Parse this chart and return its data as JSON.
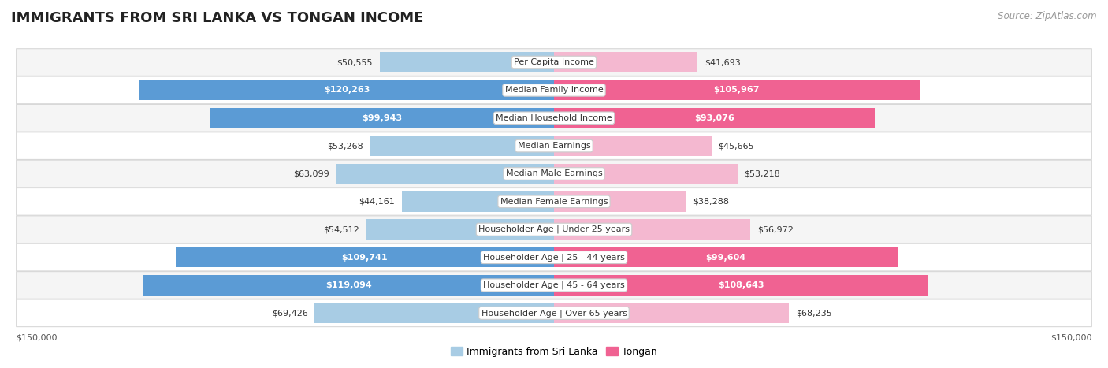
{
  "title": "IMMIGRANTS FROM SRI LANKA VS TONGAN INCOME",
  "source": "Source: ZipAtlas.com",
  "categories": [
    "Per Capita Income",
    "Median Family Income",
    "Median Household Income",
    "Median Earnings",
    "Median Male Earnings",
    "Median Female Earnings",
    "Householder Age | Under 25 years",
    "Householder Age | 25 - 44 years",
    "Householder Age | 45 - 64 years",
    "Householder Age | Over 65 years"
  ],
  "sri_lanka_values": [
    50555,
    120263,
    99943,
    53268,
    63099,
    44161,
    54512,
    109741,
    119094,
    69426
  ],
  "tongan_values": [
    41693,
    105967,
    93076,
    45665,
    53218,
    38288,
    56972,
    99604,
    108643,
    68235
  ],
  "sri_lanka_labels": [
    "$50,555",
    "$120,263",
    "$99,943",
    "$53,268",
    "$63,099",
    "$44,161",
    "$54,512",
    "$109,741",
    "$119,094",
    "$69,426"
  ],
  "tongan_labels": [
    "$41,693",
    "$105,967",
    "$93,076",
    "$45,665",
    "$53,218",
    "$38,288",
    "$56,972",
    "$99,604",
    "$108,643",
    "$68,235"
  ],
  "sri_lanka_color_light": "#a8cce4",
  "sri_lanka_color_dark": "#5b9bd5",
  "tongan_color_light": "#f4b8d0",
  "tongan_color_dark": "#f06292",
  "sri_lanka_threshold": 80000,
  "tongan_threshold": 80000,
  "max_val": 150000,
  "background_color": "#ffffff",
  "row_bg_even": "#f5f5f5",
  "row_bg_odd": "#ffffff",
  "row_border": "#d8d8d8",
  "label_box_color": "#ffffff",
  "label_box_border": "#cccccc",
  "title_fontsize": 13,
  "source_fontsize": 8.5,
  "bar_label_fontsize": 8,
  "category_fontsize": 8,
  "axis_label_fontsize": 8,
  "legend_fontsize": 9
}
